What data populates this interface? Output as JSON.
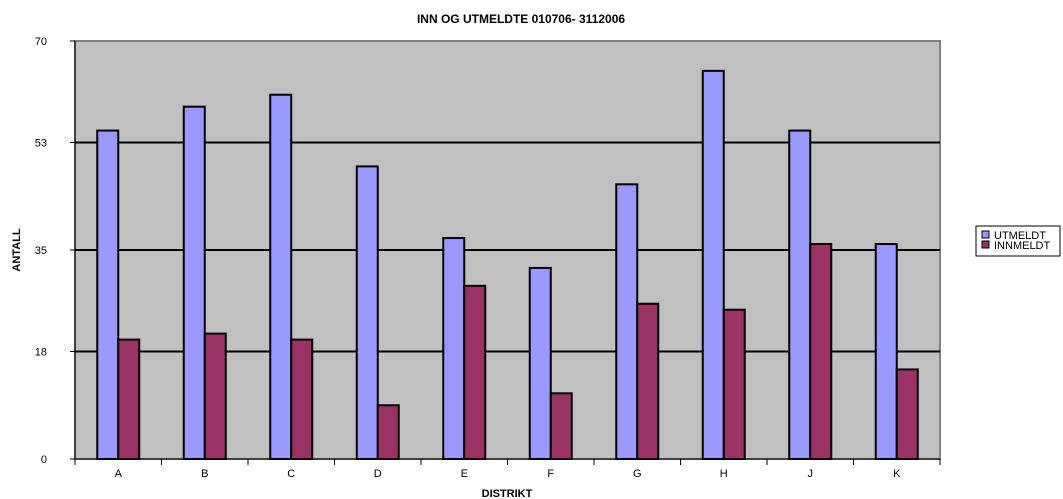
{
  "chart_data": {
    "type": "bar",
    "title": "INN OG UTMELDTE 010706- 3112006",
    "xlabel": "DISTRIKT",
    "ylabel": "ANTALL",
    "categories": [
      "A",
      "B",
      "C",
      "D",
      "E",
      "F",
      "G",
      "H",
      "J",
      "K"
    ],
    "series": [
      {
        "name": "UTMELDT",
        "color": "#9999ff",
        "values": [
          55,
          59,
          61,
          49,
          37,
          32,
          46,
          65,
          55,
          36
        ]
      },
      {
        "name": "INNMELDT",
        "color": "#993366",
        "values": [
          20,
          21,
          20,
          9,
          29,
          11,
          26,
          25,
          36,
          15
        ]
      }
    ],
    "ylim": [
      0,
      70
    ],
    "yticks": [
      0,
      18,
      35,
      53,
      70
    ],
    "grid": true,
    "plot_background": "#c0c0c0",
    "legend_position": "right"
  }
}
